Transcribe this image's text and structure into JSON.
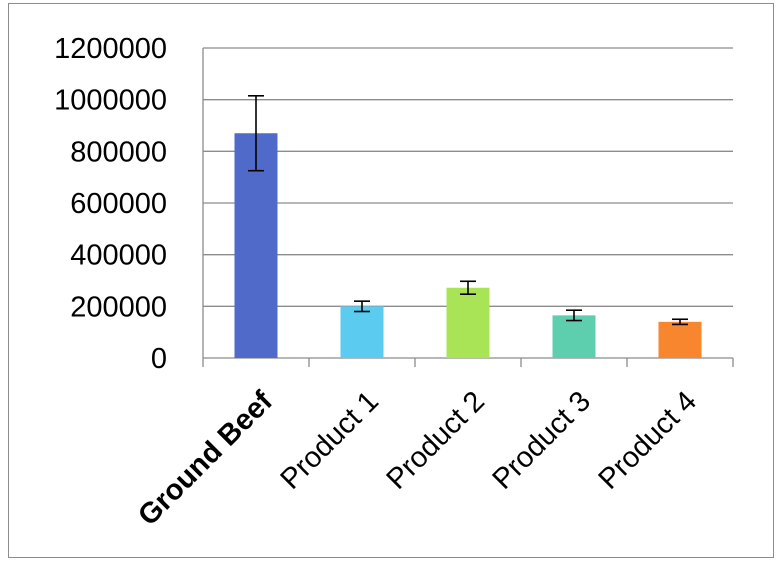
{
  "chart_data": {
    "type": "bar",
    "categories": [
      "Ground Beef",
      "Product 1",
      "Product 2",
      "Product 3",
      "Product 4"
    ],
    "bold_categories": [
      "Ground Beef"
    ],
    "values": [
      870000,
      200000,
      272000,
      165000,
      140000
    ],
    "error_bars": [
      145000,
      20000,
      25000,
      20000,
      10000
    ],
    "colors": [
      "#4f6ac8",
      "#5bcbf0",
      "#a8e455",
      "#5ecfae",
      "#f7862e"
    ],
    "yticks": [
      0,
      200000,
      400000,
      600000,
      800000,
      1000000,
      1200000
    ],
    "ylim": [
      0,
      1200000
    ],
    "grid": true,
    "title": "",
    "xlabel": "",
    "ylabel": ""
  }
}
